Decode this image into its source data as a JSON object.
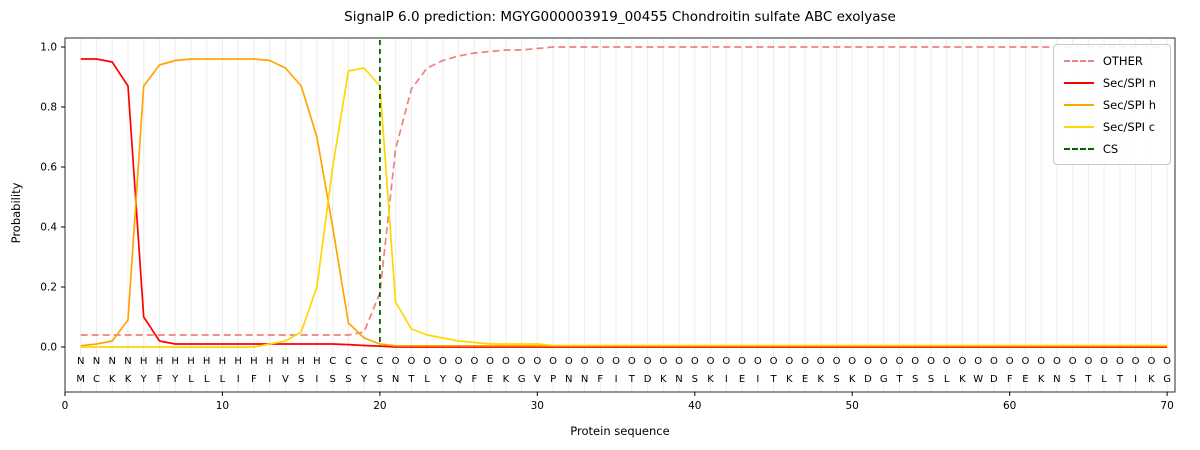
{
  "chart_data": {
    "type": "line",
    "title": "SignalP 6.0 prediction: MGYG000003919_00455 Chondroitin sulfate ABC exolyase",
    "xlabel": "Protein sequence",
    "ylabel": "Probability",
    "xlim": [
      0,
      70.5
    ],
    "ylim": [
      0.0,
      1.0
    ],
    "xticks": [
      0,
      10,
      20,
      30,
      40,
      50,
      60,
      70
    ],
    "yticks": [
      0.0,
      0.2,
      0.4,
      0.6,
      0.8,
      1.0
    ],
    "grid": "vertical-per-residue",
    "legend_position": "upper-right",
    "sequence": "MCKKYFYLLLIFIVSISSYSNTLYQFEKGVPNNFITDKNSKIEITKEKSKDGTSSLKWDFEKNSTLTIKG",
    "region_labels": "NNNNHHHHHHHHHHHHCCCCOOOOOOOOOOOOOOOOOOOOOOOOOOOOOOOOOOOOOOOOOOOOOOOOOO",
    "region_colors": {
      "N": "#ff0000",
      "H": "#ffa500",
      "C": "#ffd700",
      "O": "#8a8a8a"
    },
    "cs": {
      "label": "CS",
      "position": 20,
      "color": "#006400"
    },
    "style": {
      "grid": "#ececec",
      "frame": "#2b2b2b",
      "letter": "#111111"
    },
    "series": [
      {
        "id": "other",
        "name": "OTHER",
        "color": "#f08080",
        "dash": true,
        "values": [
          0.04,
          0.04,
          0.04,
          0.04,
          0.04,
          0.04,
          0.04,
          0.04,
          0.04,
          0.04,
          0.04,
          0.04,
          0.04,
          0.04,
          0.04,
          0.04,
          0.04,
          0.04,
          0.05,
          0.18,
          0.66,
          0.86,
          0.93,
          0.955,
          0.97,
          0.98,
          0.985,
          0.99,
          0.99,
          0.995,
          1,
          1,
          1,
          1,
          1,
          1,
          1,
          1,
          1,
          1,
          1,
          1,
          1,
          1,
          1,
          1,
          1,
          1,
          1,
          1,
          1,
          1,
          1,
          1,
          1,
          1,
          1,
          1,
          1,
          1,
          1,
          1,
          1,
          1,
          1,
          1,
          1,
          1,
          1,
          1
        ]
      },
      {
        "id": "sec-spi-n",
        "name": "Sec/SPI n",
        "color": "#ff0000",
        "dash": false,
        "values": [
          0.96,
          0.96,
          0.95,
          0.87,
          0.1,
          0.02,
          0.01,
          0.01,
          0.01,
          0.01,
          0.01,
          0.01,
          0.01,
          0.01,
          0.01,
          0.01,
          0.01,
          0.008,
          0.005,
          0.003,
          0,
          0,
          0,
          0,
          0,
          0,
          0,
          0,
          0,
          0,
          0,
          0,
          0,
          0,
          0,
          0,
          0,
          0,
          0,
          0,
          0,
          0,
          0,
          0,
          0,
          0,
          0,
          0,
          0,
          0,
          0,
          0,
          0,
          0,
          0,
          0,
          0,
          0,
          0,
          0,
          0,
          0,
          0,
          0,
          0,
          0,
          0,
          0,
          0,
          0
        ]
      },
      {
        "id": "sec-spi-h",
        "name": "Sec/SPI h",
        "color": "#ffa500",
        "dash": false,
        "values": [
          0.004,
          0.01,
          0.02,
          0.09,
          0.87,
          0.94,
          0.955,
          0.96,
          0.96,
          0.96,
          0.96,
          0.96,
          0.955,
          0.93,
          0.87,
          0.7,
          0.4,
          0.08,
          0.03,
          0.01,
          0.004,
          0.004,
          0.004,
          0.004,
          0.004,
          0.004,
          0.004,
          0.004,
          0.004,
          0.004,
          0.004,
          0.004,
          0.004,
          0.004,
          0.004,
          0.004,
          0.004,
          0.004,
          0.004,
          0.004,
          0.004,
          0.004,
          0.004,
          0.004,
          0.004,
          0.004,
          0.004,
          0.004,
          0.004,
          0.004,
          0.004,
          0.004,
          0.004,
          0.004,
          0.004,
          0.004,
          0.004,
          0.004,
          0.004,
          0.004,
          0.004,
          0.004,
          0.004,
          0.004,
          0.004,
          0.004,
          0.004,
          0.004,
          0.004,
          0.004
        ]
      },
      {
        "id": "sec-spi-c",
        "name": "Sec/SPI c",
        "color": "#ffd700",
        "dash": false,
        "values": [
          0,
          0,
          0,
          0,
          0,
          0,
          0,
          0,
          0,
          0,
          0,
          0,
          0.01,
          0.02,
          0.05,
          0.2,
          0.6,
          0.92,
          0.93,
          0.87,
          0.15,
          0.06,
          0.04,
          0.03,
          0.02,
          0.015,
          0.01,
          0.01,
          0.01,
          0.01,
          0.005,
          0.005,
          0.005,
          0.005,
          0.005,
          0.005,
          0.005,
          0.005,
          0.005,
          0.005,
          0.005,
          0.005,
          0.005,
          0.005,
          0.005,
          0.005,
          0.005,
          0.005,
          0.005,
          0.005,
          0.005,
          0.005,
          0.005,
          0.005,
          0.005,
          0.005,
          0.005,
          0.005,
          0.005,
          0.005,
          0.005,
          0.005,
          0.005,
          0.005,
          0.005,
          0.005,
          0.005,
          0.005,
          0.005,
          0.005
        ]
      }
    ]
  }
}
